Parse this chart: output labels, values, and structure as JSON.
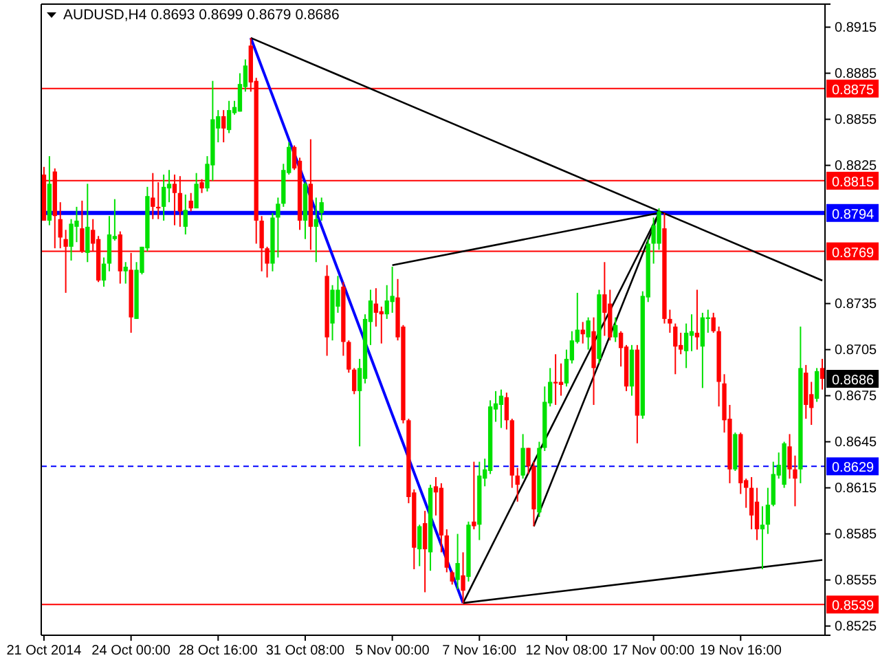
{
  "chart_data": {
    "type": "candlestick",
    "title": "AUDUSD,H4  0.8693 0.8699 0.8679 0.8686",
    "categories": [
      "21 Oct 2014",
      null,
      null,
      null,
      null,
      null,
      null,
      null,
      null,
      null,
      null,
      null,
      null,
      null,
      null,
      null,
      "24 Oct 00:00",
      null,
      null,
      null,
      null,
      null,
      null,
      null,
      null,
      null,
      null,
      null,
      null,
      null,
      null,
      null,
      "28 Oct 16:00",
      null,
      null,
      null,
      null,
      null,
      null,
      null,
      null,
      null,
      null,
      null,
      null,
      null,
      null,
      null,
      "31 Oct 08:00",
      null,
      null,
      null,
      null,
      null,
      null,
      null,
      null,
      null,
      null,
      null,
      null,
      null,
      null,
      null,
      "5 Nov 00:00",
      null,
      null,
      null,
      null,
      null,
      null,
      null,
      null,
      null,
      null,
      null,
      null,
      null,
      null,
      null,
      "7 Nov 16:00",
      null,
      null,
      null,
      null,
      null,
      null,
      null,
      null,
      null,
      null,
      null,
      null,
      null,
      null,
      null,
      "12 Nov 08:00",
      null,
      null,
      null,
      null,
      null,
      null,
      null,
      null,
      null,
      null,
      null,
      null,
      null,
      null,
      null,
      "17 Nov 00:00",
      null,
      null,
      null,
      null,
      null,
      null,
      null,
      null,
      null,
      null,
      null,
      null,
      null,
      null,
      null,
      "19 Nov 16:00",
      null,
      null,
      null,
      null,
      null,
      null,
      null,
      null,
      null,
      null,
      null,
      null,
      null,
      null,
      null
    ],
    "ohlc": [
      [
        0.8819,
        0.8824,
        0.8789,
        0.8789
      ],
      [
        0.8789,
        0.8831,
        0.8786,
        0.8813
      ],
      [
        0.8821,
        0.8823,
        0.8771,
        0.8792
      ],
      [
        0.879,
        0.8801,
        0.8771,
        0.8778
      ],
      [
        0.8777,
        0.8783,
        0.8742,
        0.8772
      ],
      [
        0.8772,
        0.879,
        0.8763,
        0.8787
      ],
      [
        0.8785,
        0.8798,
        0.8775,
        0.8789
      ],
      [
        0.8784,
        0.8802,
        0.8768,
        0.8769
      ],
      [
        0.8768,
        0.8813,
        0.8762,
        0.8785
      ],
      [
        0.8783,
        0.879,
        0.8769,
        0.8774
      ],
      [
        0.8777,
        0.8779,
        0.8749,
        0.875
      ],
      [
        0.875,
        0.8765,
        0.8746,
        0.8761
      ],
      [
        0.8761,
        0.8792,
        0.8756,
        0.878
      ],
      [
        0.8777,
        0.8803,
        0.8776,
        0.8779
      ],
      [
        0.878,
        0.8782,
        0.8748,
        0.8756
      ],
      [
        0.8756,
        0.8762,
        0.8748,
        0.8759
      ],
      [
        0.8757,
        0.8768,
        0.8716,
        0.8726
      ],
      [
        0.8725,
        0.8762,
        0.8725,
        0.8757
      ],
      [
        0.8755,
        0.8772,
        0.8754,
        0.8772
      ],
      [
        0.8771,
        0.8811,
        0.8769,
        0.8805
      ],
      [
        0.8804,
        0.882,
        0.879,
        0.8798
      ],
      [
        0.8798,
        0.8814,
        0.879,
        0.8797
      ],
      [
        0.8798,
        0.8819,
        0.8789,
        0.8811
      ],
      [
        0.881,
        0.8822,
        0.8801,
        0.8813
      ],
      [
        0.8813,
        0.8819,
        0.8786,
        0.8807
      ],
      [
        0.8807,
        0.8818,
        0.8785,
        0.8795
      ],
      [
        0.8785,
        0.8806,
        0.878,
        0.8796
      ],
      [
        0.8802,
        0.8807,
        0.8795,
        0.8797
      ],
      [
        0.8797,
        0.882,
        0.8797,
        0.8813
      ],
      [
        0.8814,
        0.8816,
        0.8807,
        0.881
      ],
      [
        0.881,
        0.8831,
        0.8808,
        0.8826
      ],
      [
        0.8825,
        0.888,
        0.8815,
        0.8855
      ],
      [
        0.8849,
        0.8861,
        0.884,
        0.8857
      ],
      [
        0.8857,
        0.8861,
        0.884,
        0.8849
      ],
      [
        0.8848,
        0.8867,
        0.8846,
        0.8861
      ],
      [
        0.8859,
        0.8867,
        0.8858,
        0.8863
      ],
      [
        0.886,
        0.8885,
        0.886,
        0.8878
      ],
      [
        0.8876,
        0.8894,
        0.8873,
        0.889
      ],
      [
        0.8903,
        0.8908,
        0.8873,
        0.8879
      ],
      [
        0.888,
        0.8882,
        0.8774,
        0.8789
      ],
      [
        0.8789,
        0.8792,
        0.8756,
        0.8771
      ],
      [
        0.8771,
        0.8772,
        0.8752,
        0.8761
      ],
      [
        0.8761,
        0.8794,
        0.8756,
        0.8791
      ],
      [
        0.8791,
        0.8804,
        0.8765,
        0.88
      ],
      [
        0.88,
        0.8826,
        0.8798,
        0.8822
      ],
      [
        0.882,
        0.884,
        0.8819,
        0.8837
      ],
      [
        0.8837,
        0.8838,
        0.8822,
        0.8823
      ],
      [
        0.8828,
        0.883,
        0.8783,
        0.8789
      ],
      [
        0.8789,
        0.8814,
        0.8777,
        0.8813
      ],
      [
        0.8813,
        0.8842,
        0.877,
        0.8785
      ],
      [
        0.8785,
        0.8804,
        0.8762,
        0.879
      ],
      [
        0.8794,
        0.8804,
        0.8789,
        0.8801
      ],
      [
        0.8753,
        0.876,
        0.8701,
        0.8713
      ],
      [
        0.8722,
        0.8747,
        0.8711,
        0.8744
      ],
      [
        0.8733,
        0.8753,
        0.8729,
        0.8744
      ],
      [
        0.8746,
        0.8749,
        0.8701,
        0.871
      ],
      [
        0.871,
        0.8711,
        0.869,
        0.8692
      ],
      [
        0.8692,
        0.8693,
        0.8676,
        0.8678
      ],
      [
        0.8678,
        0.8699,
        0.8642,
        0.8693
      ],
      [
        0.8686,
        0.8728,
        0.8683,
        0.8725
      ],
      [
        0.8723,
        0.8744,
        0.8708,
        0.8737
      ],
      [
        0.8735,
        0.8745,
        0.872,
        0.8729
      ],
      [
        0.873,
        0.8733,
        0.8709,
        0.8728
      ],
      [
        0.8728,
        0.8747,
        0.8725,
        0.8737
      ],
      [
        0.8736,
        0.8759,
        0.8729,
        0.874
      ],
      [
        0.8739,
        0.8751,
        0.8711,
        0.8713
      ],
      [
        0.872,
        0.8721,
        0.8657,
        0.8659
      ],
      [
        0.8659,
        0.866,
        0.8605,
        0.8609
      ],
      [
        0.8612,
        0.8614,
        0.8562,
        0.8576
      ],
      [
        0.8575,
        0.8591,
        0.8564,
        0.859
      ],
      [
        0.8592,
        0.86,
        0.8547,
        0.8575
      ],
      [
        0.8573,
        0.8617,
        0.8561,
        0.8615
      ],
      [
        0.8616,
        0.8622,
        0.8597,
        0.8612
      ],
      [
        0.8615,
        0.8618,
        0.8573,
        0.8584
      ],
      [
        0.8584,
        0.8588,
        0.856,
        0.8563
      ],
      [
        0.856,
        0.8561,
        0.8552,
        0.8554
      ],
      [
        0.8555,
        0.8585,
        0.8549,
        0.8566
      ],
      [
        0.8558,
        0.8573,
        0.854,
        0.8548
      ],
      [
        0.8557,
        0.8593,
        0.8554,
        0.8591
      ],
      [
        0.8593,
        0.8632,
        0.8588,
        0.859
      ],
      [
        0.8591,
        0.8632,
        0.8581,
        0.8623
      ],
      [
        0.8621,
        0.8634,
        0.8616,
        0.8627
      ],
      [
        0.8626,
        0.8672,
        0.8624,
        0.8668
      ],
      [
        0.8666,
        0.8678,
        0.8658,
        0.867
      ],
      [
        0.8669,
        0.8679,
        0.8654,
        0.8675
      ],
      [
        0.8674,
        0.8677,
        0.8653,
        0.8659
      ],
      [
        0.8659,
        0.866,
        0.8615,
        0.8623
      ],
      [
        0.8623,
        0.8628,
        0.8606,
        0.8617
      ],
      [
        0.8623,
        0.865,
        0.8621,
        0.8641
      ],
      [
        0.8641,
        0.8641,
        0.8624,
        0.8629
      ],
      [
        0.8629,
        0.8632,
        0.859,
        0.8601
      ],
      [
        0.8599,
        0.8645,
        0.8596,
        0.8641
      ],
      [
        0.8641,
        0.8681,
        0.8639,
        0.8671
      ],
      [
        0.867,
        0.8693,
        0.8668,
        0.8684
      ],
      [
        0.8684,
        0.8702,
        0.8669,
        0.8683
      ],
      [
        0.8684,
        0.8696,
        0.8675,
        0.8682
      ],
      [
        0.8683,
        0.8705,
        0.8681,
        0.8699
      ],
      [
        0.8698,
        0.8717,
        0.8696,
        0.8711
      ],
      [
        0.871,
        0.8742,
        0.8709,
        0.8718
      ],
      [
        0.8718,
        0.8723,
        0.8709,
        0.8715
      ],
      [
        0.8713,
        0.8726,
        0.8705,
        0.8724
      ],
      [
        0.8717,
        0.8726,
        0.8669,
        0.8693
      ],
      [
        0.8699,
        0.8744,
        0.8696,
        0.8741
      ],
      [
        0.8741,
        0.8762,
        0.8714,
        0.8729
      ],
      [
        0.8735,
        0.8744,
        0.8711,
        0.8713
      ],
      [
        0.8713,
        0.8726,
        0.871,
        0.8721
      ],
      [
        0.8716,
        0.8717,
        0.8694,
        0.8706
      ],
      [
        0.8707,
        0.8708,
        0.8678,
        0.8681
      ],
      [
        0.8681,
        0.8708,
        0.8675,
        0.8705
      ],
      [
        0.8705,
        0.8708,
        0.8644,
        0.8662
      ],
      [
        0.8662,
        0.8743,
        0.866,
        0.874
      ],
      [
        0.8739,
        0.8777,
        0.8736,
        0.8774
      ],
      [
        0.8774,
        0.8791,
        0.8761,
        0.8786
      ],
      [
        0.8774,
        0.8797,
        0.877,
        0.8795
      ],
      [
        0.8784,
        0.8794,
        0.8722,
        0.8725
      ],
      [
        0.8725,
        0.8731,
        0.8716,
        0.8722
      ],
      [
        0.872,
        0.8722,
        0.8689,
        0.8707
      ],
      [
        0.8708,
        0.8716,
        0.8702,
        0.8705
      ],
      [
        0.8704,
        0.8722,
        0.8693,
        0.8716
      ],
      [
        0.8714,
        0.8728,
        0.8704,
        0.8717
      ],
      [
        0.8716,
        0.8744,
        0.8705,
        0.8713
      ],
      [
        0.8707,
        0.8729,
        0.868,
        0.8726
      ],
      [
        0.8725,
        0.8731,
        0.8716,
        0.8726
      ],
      [
        0.8726,
        0.8729,
        0.8716,
        0.8717
      ],
      [
        0.8717,
        0.872,
        0.8668,
        0.8684
      ],
      [
        0.8683,
        0.8689,
        0.8651,
        0.8659
      ],
      [
        0.866,
        0.8669,
        0.8618,
        0.8627
      ],
      [
        0.8627,
        0.8651,
        0.8626,
        0.865
      ],
      [
        0.865,
        0.8651,
        0.8611,
        0.8618
      ],
      [
        0.862,
        0.8621,
        0.8602,
        0.8615
      ],
      [
        0.8615,
        0.8622,
        0.8588,
        0.8597
      ],
      [
        0.8606,
        0.8615,
        0.8581,
        0.8588
      ],
      [
        0.8588,
        0.8603,
        0.8562,
        0.8591
      ],
      [
        0.8591,
        0.8615,
        0.8585,
        0.8604
      ],
      [
        0.8604,
        0.8632,
        0.8603,
        0.8624
      ],
      [
        0.8623,
        0.8638,
        0.8621,
        0.863
      ],
      [
        0.8617,
        0.8645,
        0.8615,
        0.8644
      ],
      [
        0.8642,
        0.865,
        0.8621,
        0.8627
      ],
      [
        0.8627,
        0.8636,
        0.8603,
        0.8621
      ],
      [
        0.8627,
        0.872,
        0.8618,
        0.8693
      ],
      [
        0.869,
        0.8695,
        0.866,
        0.8669
      ],
      [
        0.8676,
        0.8684,
        0.8656,
        0.8667
      ],
      [
        0.8673,
        0.8693,
        0.8671,
        0.8691
      ],
      [
        0.8693,
        0.8699,
        0.8679,
        0.8686
      ]
    ],
    "series": [
      {
        "type": "line",
        "color": "#0000ff",
        "values": [
          null,
          null,
          null,
          null,
          null,
          null,
          null,
          null,
          null,
          null,
          null,
          null,
          null,
          null,
          null,
          null,
          null,
          null,
          null,
          null,
          null,
          null,
          null,
          null,
          null,
          null,
          null,
          null,
          null,
          null,
          null,
          null,
          null,
          null,
          null,
          null,
          null,
          null,
          0.8908,
          null,
          null,
          null,
          null,
          null,
          null,
          null,
          null,
          null,
          null,
          null,
          null,
          null,
          null,
          null,
          null,
          null,
          null,
          null,
          null,
          null,
          null,
          null,
          null,
          null,
          null,
          null,
          null,
          null,
          null,
          null,
          null,
          null,
          null,
          null,
          null,
          null,
          null,
          0.854,
          null,
          null,
          null,
          null,
          null,
          null,
          null,
          null,
          null,
          null,
          null,
          null,
          null,
          null,
          null,
          null,
          null,
          null,
          null,
          null,
          null,
          null,
          null,
          null,
          null,
          null,
          null,
          null,
          null,
          null,
          null,
          null,
          null,
          null,
          null,
          null,
          null,
          null,
          null,
          null,
          null,
          null,
          null,
          null,
          null,
          null,
          null,
          null,
          null,
          null,
          null,
          null,
          null,
          null,
          null,
          null,
          null,
          null,
          null,
          null,
          null,
          null,
          null,
          null,
          null,
          null
        ]
      },
      {
        "type": "line",
        "color": "#000000",
        "values": [
          null,
          null,
          null,
          null,
          null,
          null,
          null,
          null,
          null,
          null,
          null,
          null,
          null,
          null,
          null,
          null,
          null,
          null,
          null,
          null,
          null,
          null,
          null,
          null,
          null,
          null,
          null,
          null,
          null,
          null,
          null,
          null,
          null,
          null,
          null,
          null,
          null,
          null,
          0.8908,
          null,
          null,
          null,
          null,
          null,
          null,
          null,
          null,
          null,
          null,
          null,
          null,
          null,
          null,
          null,
          null,
          null,
          null,
          null,
          null,
          null,
          null,
          null,
          null,
          null,
          null,
          null,
          null,
          null,
          null,
          null,
          null,
          null,
          null,
          null,
          null,
          null,
          null,
          null,
          null,
          null,
          null,
          null,
          null,
          null,
          null,
          null,
          null,
          null,
          null,
          null,
          null,
          null,
          null,
          null,
          null,
          null,
          null,
          null,
          null,
          null,
          null,
          null,
          null,
          null,
          null,
          null,
          null,
          null,
          null,
          null,
          null,
          null,
          null,
          null,
          null,
          null,
          null,
          null,
          null,
          null,
          null,
          null,
          null,
          null,
          null,
          null,
          null,
          null,
          null,
          null,
          null,
          null,
          null,
          null,
          null,
          null,
          null,
          null,
          null,
          null,
          null,
          null,
          null,
          0.875
        ]
      },
      {
        "type": "line",
        "color": "#000000",
        "values": [
          null,
          null,
          null,
          null,
          null,
          null,
          null,
          null,
          null,
          null,
          null,
          null,
          null,
          null,
          null,
          null,
          null,
          null,
          null,
          null,
          null,
          null,
          null,
          null,
          null,
          null,
          null,
          null,
          null,
          null,
          null,
          null,
          null,
          null,
          null,
          null,
          null,
          null,
          null,
          null,
          null,
          null,
          null,
          null,
          null,
          null,
          null,
          null,
          null,
          null,
          null,
          null,
          null,
          null,
          null,
          null,
          null,
          null,
          null,
          null,
          null,
          null,
          null,
          null,
          null,
          null,
          null,
          null,
          null,
          null,
          null,
          null,
          null,
          null,
          null,
          null,
          null,
          0.854,
          null,
          null,
          null,
          null,
          null,
          null,
          null,
          null,
          null,
          null,
          null,
          null,
          null,
          null,
          null,
          null,
          null,
          null,
          null,
          null,
          null,
          null,
          null,
          null,
          null,
          null,
          null,
          null,
          null,
          null,
          null,
          null,
          null,
          null,
          null,
          0.8794,
          null,
          null,
          null,
          null,
          null,
          null,
          null,
          null,
          null,
          null,
          null,
          null,
          null,
          null,
          null,
          null,
          null,
          null,
          null,
          null,
          null,
          null,
          null,
          null,
          null,
          null,
          null,
          null,
          null,
          null
        ]
      },
      {
        "type": "line",
        "color": "#000000",
        "values": [
          null,
          null,
          null,
          null,
          null,
          null,
          null,
          null,
          null,
          null,
          null,
          null,
          null,
          null,
          null,
          null,
          null,
          null,
          null,
          null,
          null,
          null,
          null,
          null,
          null,
          null,
          null,
          null,
          null,
          null,
          null,
          null,
          null,
          null,
          null,
          null,
          null,
          null,
          null,
          null,
          null,
          null,
          null,
          null,
          null,
          null,
          null,
          null,
          null,
          null,
          null,
          null,
          null,
          null,
          null,
          null,
          null,
          null,
          null,
          null,
          null,
          null,
          null,
          null,
          null,
          null,
          null,
          null,
          null,
          null,
          null,
          null,
          null,
          null,
          null,
          null,
          null,
          null,
          null,
          null,
          null,
          null,
          null,
          null,
          null,
          null,
          null,
          null,
          null,
          null,
          0.859,
          null,
          null,
          null,
          null,
          null,
          null,
          null,
          null,
          null,
          null,
          null,
          null,
          null,
          null,
          null,
          null,
          null,
          null,
          null,
          null,
          null,
          null,
          0.8794,
          null,
          null,
          null,
          null,
          null,
          null,
          null,
          null,
          null,
          null,
          null,
          null,
          null,
          null,
          null,
          null,
          null,
          null,
          null,
          null,
          null,
          null,
          null,
          null,
          null,
          null,
          null,
          null,
          null,
          null
        ]
      },
      {
        "type": "line",
        "color": "#000000",
        "values": [
          null,
          null,
          null,
          null,
          null,
          null,
          null,
          null,
          null,
          null,
          null,
          null,
          null,
          null,
          null,
          null,
          null,
          null,
          null,
          null,
          null,
          null,
          null,
          null,
          null,
          null,
          null,
          null,
          null,
          null,
          null,
          null,
          null,
          null,
          null,
          null,
          null,
          null,
          null,
          null,
          null,
          null,
          null,
          null,
          null,
          null,
          null,
          null,
          null,
          null,
          null,
          null,
          null,
          null,
          null,
          null,
          null,
          null,
          null,
          null,
          null,
          null,
          null,
          null,
          null,
          null,
          null,
          null,
          null,
          null,
          null,
          null,
          null,
          null,
          null,
          null,
          null,
          0.854,
          null,
          null,
          null,
          null,
          null,
          null,
          null,
          null,
          null,
          null,
          null,
          null,
          null,
          null,
          null,
          null,
          null,
          null,
          null,
          null,
          null,
          null,
          null,
          null,
          null,
          null,
          null,
          null,
          null,
          null,
          null,
          null,
          null,
          null,
          null,
          null,
          null,
          null,
          null,
          null,
          null,
          null,
          null,
          null,
          null,
          null,
          null,
          null,
          null,
          null,
          null,
          null,
          null,
          null,
          null,
          null,
          null,
          null,
          null,
          null,
          null,
          null,
          null,
          null,
          null,
          0.8568
        ]
      },
      {
        "type": "line",
        "color": "#000000",
        "values": [
          null,
          null,
          null,
          null,
          null,
          null,
          null,
          null,
          null,
          null,
          null,
          null,
          null,
          null,
          null,
          null,
          null,
          null,
          null,
          null,
          null,
          null,
          null,
          null,
          null,
          null,
          null,
          null,
          null,
          null,
          null,
          null,
          null,
          null,
          null,
          null,
          null,
          null,
          null,
          null,
          null,
          null,
          null,
          null,
          null,
          null,
          null,
          null,
          null,
          null,
          null,
          null,
          null,
          null,
          null,
          null,
          null,
          null,
          null,
          null,
          null,
          null,
          null,
          null,
          0.876,
          null,
          null,
          null,
          null,
          null,
          null,
          null,
          null,
          null,
          null,
          null,
          null,
          null,
          null,
          null,
          null,
          null,
          null,
          null,
          null,
          null,
          null,
          null,
          null,
          null,
          null,
          null,
          null,
          null,
          null,
          null,
          null,
          null,
          null,
          null,
          null,
          null,
          null,
          null,
          null,
          null,
          null,
          null,
          null,
          null,
          null,
          null,
          null,
          0.8794,
          null,
          null,
          null,
          null,
          null,
          null,
          null,
          null,
          null,
          null,
          null,
          null,
          null,
          null,
          null,
          null,
          null,
          null,
          null,
          null,
          null,
          null,
          null,
          null,
          null,
          null,
          null,
          null,
          null,
          null
        ]
      }
    ],
    "ylim": [
      0.8519,
      0.893
    ],
    "yticks": [
      0.8915,
      0.8885,
      0.8855,
      0.8825,
      0.8735,
      0.8705,
      0.8675,
      0.8645,
      0.8615,
      0.8585,
      0.8555,
      0.8525
    ],
    "ref_lines": [
      {
        "axis": "y",
        "value": 0.8875,
        "label": "0.8875",
        "color": "#ff0000"
      },
      {
        "axis": "y",
        "value": 0.8815,
        "label": "0.8815",
        "color": "#ff0000"
      },
      {
        "axis": "y",
        "value": 0.8794,
        "label": "0.8794",
        "color": "#0000ff"
      },
      {
        "axis": "y",
        "value": 0.8769,
        "label": "0.8769",
        "color": "#ff0000"
      },
      {
        "axis": "y",
        "value": 0.8629,
        "label": "0.8629",
        "color": "#0000ff",
        "line_style": "dashed"
      },
      {
        "axis": "y",
        "value": 0.8539,
        "label": "0.8539",
        "color": "#ff0000"
      }
    ],
    "annotations": [
      "0.8686"
    ],
    "grid": false
  }
}
